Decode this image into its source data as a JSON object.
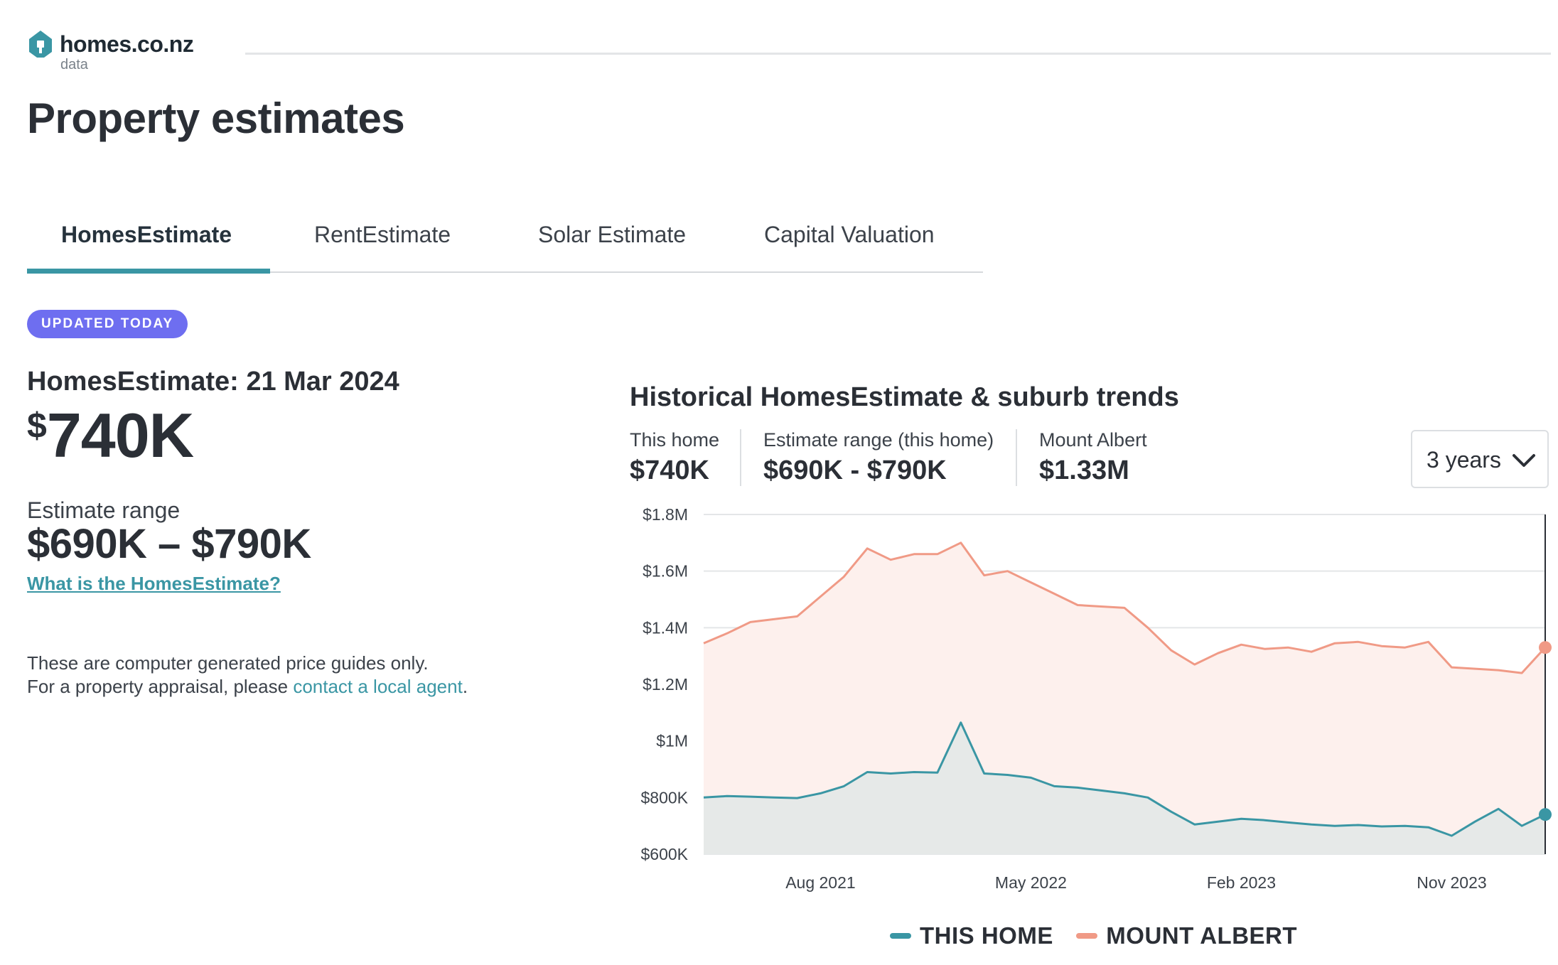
{
  "header": {
    "logo_text": "homes.co.nz",
    "logo_sub": "data",
    "logo_icon": "house-icon",
    "page_title": "Property estimates"
  },
  "tabs": [
    {
      "label": "HomesEstimate",
      "active": true
    },
    {
      "label": "RentEstimate",
      "active": false
    },
    {
      "label": "Solar Estimate",
      "active": false
    },
    {
      "label": "Capital Valuation",
      "active": false
    }
  ],
  "estimate": {
    "badge": "UPDATED TODAY",
    "date_label": "HomesEstimate: 21 Mar 2024",
    "currency": "$",
    "value": "740K",
    "range_label": "Estimate range",
    "range_value": "$690K – $790K",
    "what_link": "What is the HomesEstimate?",
    "disclaimer_line1": "These are computer generated price guides only.",
    "disclaimer_line2": "For a property appraisal, please ",
    "disclaimer_link": "contact a local agent",
    "disclaimer_end": "."
  },
  "history": {
    "title": "Historical HomesEstimate & suburb trends",
    "stats": [
      {
        "label": "This home",
        "value": "$740K"
      },
      {
        "label": "Estimate range (this home)",
        "value": "$690K - $790K"
      },
      {
        "label": "Mount Albert",
        "value": "$1.33M"
      }
    ],
    "period": "3 years",
    "period_icon": "chevron-down-icon"
  },
  "colors": {
    "accent": "#3a96a4",
    "badge": "#6e6ef0",
    "this_home": "#3a96a4",
    "mount_albert": "#f09a86"
  },
  "chart_data": {
    "type": "area",
    "ylim": [
      600000,
      1800000
    ],
    "y_ticks": [
      {
        "label": "$1.8M",
        "value": 1800000
      },
      {
        "label": "$1.6M",
        "value": 1600000
      },
      {
        "label": "$1.4M",
        "value": 1400000
      },
      {
        "label": "$1.2M",
        "value": 1200000
      },
      {
        "label": "$1M",
        "value": 1000000
      },
      {
        "label": "$800K",
        "value": 800000
      },
      {
        "label": "$600K",
        "value": 600000
      }
    ],
    "x_range": [
      "2021-03",
      "2024-03"
    ],
    "x_ticks": [
      {
        "label": "Aug 2021",
        "date": "2021-08"
      },
      {
        "label": "May 2022",
        "date": "2022-05"
      },
      {
        "label": "Feb 2023",
        "date": "2023-02"
      },
      {
        "label": "Nov 2023",
        "date": "2023-11"
      }
    ],
    "grid": true,
    "legend_position": "bottom-center",
    "series": [
      {
        "name": "THIS HOME",
        "color": "#3a96a4",
        "fill": "#e6e9e8",
        "points": [
          [
            "2021-03",
            800000
          ],
          [
            "2021-04",
            805000
          ],
          [
            "2021-05",
            803000
          ],
          [
            "2021-06",
            800000
          ],
          [
            "2021-07",
            798000
          ],
          [
            "2021-08",
            815000
          ],
          [
            "2021-09",
            840000
          ],
          [
            "2021-10",
            890000
          ],
          [
            "2021-11",
            885000
          ],
          [
            "2021-12",
            890000
          ],
          [
            "2022-01",
            888000
          ],
          [
            "2022-02",
            1065000
          ],
          [
            "2022-03",
            885000
          ],
          [
            "2022-04",
            880000
          ],
          [
            "2022-05",
            870000
          ],
          [
            "2022-06",
            840000
          ],
          [
            "2022-07",
            835000
          ],
          [
            "2022-08",
            825000
          ],
          [
            "2022-09",
            815000
          ],
          [
            "2022-10",
            800000
          ],
          [
            "2022-11",
            750000
          ],
          [
            "2022-12",
            705000
          ],
          [
            "2023-01",
            715000
          ],
          [
            "2023-02",
            725000
          ],
          [
            "2023-03",
            720000
          ],
          [
            "2023-04",
            712000
          ],
          [
            "2023-05",
            705000
          ],
          [
            "2023-06",
            700000
          ],
          [
            "2023-07",
            703000
          ],
          [
            "2023-08",
            698000
          ],
          [
            "2023-09",
            700000
          ],
          [
            "2023-10",
            695000
          ],
          [
            "2023-11",
            665000
          ],
          [
            "2023-12",
            715000
          ],
          [
            "2024-01",
            760000
          ],
          [
            "2024-02",
            700000
          ],
          [
            "2024-03",
            740000
          ]
        ]
      },
      {
        "name": "MOUNT ALBERT",
        "color": "#f09a86",
        "fill": "#fdf0ed",
        "points": [
          [
            "2021-03",
            1345000
          ],
          [
            "2021-04",
            1380000
          ],
          [
            "2021-05",
            1420000
          ],
          [
            "2021-06",
            1430000
          ],
          [
            "2021-07",
            1440000
          ],
          [
            "2021-08",
            1510000
          ],
          [
            "2021-09",
            1580000
          ],
          [
            "2021-10",
            1680000
          ],
          [
            "2021-11",
            1640000
          ],
          [
            "2021-12",
            1660000
          ],
          [
            "2022-01",
            1660000
          ],
          [
            "2022-02",
            1700000
          ],
          [
            "2022-03",
            1585000
          ],
          [
            "2022-04",
            1600000
          ],
          [
            "2022-05",
            1560000
          ],
          [
            "2022-06",
            1520000
          ],
          [
            "2022-07",
            1480000
          ],
          [
            "2022-08",
            1475000
          ],
          [
            "2022-09",
            1470000
          ],
          [
            "2022-10",
            1400000
          ],
          [
            "2022-11",
            1320000
          ],
          [
            "2022-12",
            1270000
          ],
          [
            "2023-01",
            1310000
          ],
          [
            "2023-02",
            1340000
          ],
          [
            "2023-03",
            1325000
          ],
          [
            "2023-04",
            1330000
          ],
          [
            "2023-05",
            1315000
          ],
          [
            "2023-06",
            1345000
          ],
          [
            "2023-07",
            1350000
          ],
          [
            "2023-08",
            1335000
          ],
          [
            "2023-09",
            1330000
          ],
          [
            "2023-10",
            1350000
          ],
          [
            "2023-11",
            1260000
          ],
          [
            "2023-12",
            1255000
          ],
          [
            "2024-01",
            1250000
          ],
          [
            "2024-02",
            1240000
          ],
          [
            "2024-03",
            1330000
          ]
        ]
      }
    ]
  }
}
